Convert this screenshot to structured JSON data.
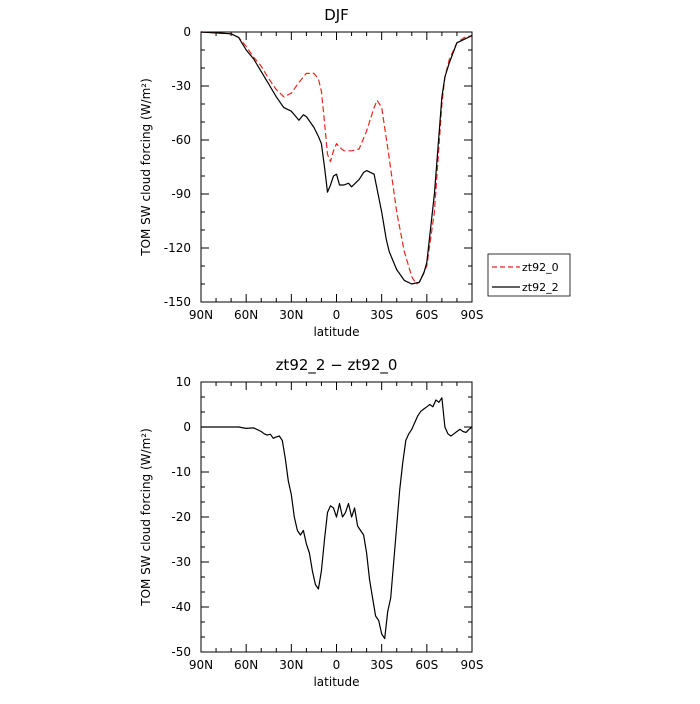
{
  "chart_data": [
    {
      "type": "line",
      "title": "DJF",
      "xlabel": "latitude",
      "ylabel": "TOM SW cloud forcing (W/m²)",
      "x_tick_labels": [
        "90N",
        "60N",
        "30N",
        "0",
        "30S",
        "60S",
        "90S"
      ],
      "x_ticks": [
        -90,
        -60,
        -30,
        0,
        30,
        60,
        90
      ],
      "xlim": [
        -90,
        90
      ],
      "y_ticks": [
        0,
        -30,
        -60,
        -90,
        -120,
        -150
      ],
      "ylim": [
        -150,
        0
      ],
      "legend_position": "right",
      "series": [
        {
          "name": "zt92_0",
          "color": "#e8281c",
          "dash": "dashed",
          "x": [
            -90,
            -80,
            -70,
            -65,
            -60,
            -55,
            -50,
            -45,
            -40,
            -35,
            -30,
            -25,
            -20,
            -15,
            -12,
            -10,
            -8,
            -6,
            -4,
            -2,
            0,
            2,
            5,
            10,
            15,
            20,
            25,
            27,
            30,
            35,
            40,
            45,
            50,
            53,
            55,
            60,
            65,
            70,
            72,
            75,
            80,
            85,
            90
          ],
          "y": [
            0,
            -0.5,
            -1,
            -3,
            -8,
            -14,
            -19,
            -26,
            -32,
            -36,
            -34,
            -28,
            -23,
            -23,
            -26,
            -33,
            -50,
            -68,
            -72,
            -66,
            -62,
            -64,
            -66,
            -66,
            -65,
            -55,
            -42,
            -38,
            -42,
            -70,
            -100,
            -122,
            -136,
            -140,
            -139,
            -130,
            -100,
            -40,
            -25,
            -15,
            -6,
            -3,
            -2
          ]
        },
        {
          "name": "zt92_2",
          "color": "#000000",
          "dash": "solid",
          "x": [
            -90,
            -80,
            -70,
            -65,
            -60,
            -55,
            -50,
            -45,
            -40,
            -35,
            -30,
            -27,
            -25,
            -22,
            -20,
            -15,
            -12,
            -10,
            -8,
            -6,
            -4,
            -2,
            0,
            2,
            5,
            8,
            10,
            15,
            18,
            20,
            25,
            30,
            33,
            35,
            40,
            45,
            50,
            55,
            58,
            60,
            65,
            70,
            72,
            75,
            80,
            85,
            90
          ],
          "y": [
            0,
            -0.5,
            -1,
            -3,
            -10,
            -15,
            -22,
            -29,
            -36,
            -42,
            -44,
            -47,
            -49,
            -46,
            -47,
            -53,
            -58,
            -62,
            -75,
            -89,
            -85,
            -80,
            -79,
            -85,
            -85,
            -84,
            -86,
            -82,
            -78,
            -77,
            -79,
            -100,
            -115,
            -122,
            -132,
            -138,
            -140,
            -139,
            -134,
            -128,
            -90,
            -36,
            -25,
            -17,
            -6,
            -4,
            -2
          ]
        }
      ]
    },
    {
      "type": "line",
      "title": "zt92_2 − zt92_0",
      "xlabel": "latitude",
      "ylabel": "TOM SW cloud forcing (W/m²)",
      "x_tick_labels": [
        "90N",
        "60N",
        "30N",
        "0",
        "30S",
        "60S",
        "90S"
      ],
      "x_ticks": [
        -90,
        -60,
        -30,
        0,
        30,
        60,
        90
      ],
      "xlim": [
        -90,
        90
      ],
      "y_ticks": [
        10,
        0,
        -10,
        -20,
        -30,
        -40,
        -50
      ],
      "ylim": [
        -50,
        10
      ],
      "series": [
        {
          "color": "#000000",
          "dash": "solid",
          "x": [
            -90,
            -80,
            -70,
            -65,
            -60,
            -55,
            -50,
            -48,
            -46,
            -44,
            -42,
            -40,
            -38,
            -36,
            -34,
            -32,
            -30,
            -28,
            -26,
            -24,
            -22,
            -20,
            -18,
            -16,
            -14,
            -12,
            -10,
            -8,
            -6,
            -4,
            -2,
            0,
            2,
            4,
            6,
            8,
            10,
            12,
            14,
            16,
            18,
            20,
            22,
            24,
            26,
            28,
            30,
            32,
            34,
            36,
            38,
            40,
            42,
            44,
            46,
            48,
            50,
            52,
            54,
            56,
            58,
            60,
            62,
            64,
            66,
            68,
            70,
            72,
            74,
            76,
            78,
            80,
            82,
            84,
            86,
            88,
            90
          ],
          "y": [
            0,
            0,
            0,
            0,
            -0.3,
            -0.2,
            -1,
            -1.5,
            -1.8,
            -1.6,
            -2.5,
            -2.2,
            -2,
            -3,
            -7,
            -12,
            -15,
            -20,
            -23,
            -24,
            -23,
            -26,
            -28,
            -32,
            -35,
            -36,
            -32,
            -25,
            -19,
            -17.5,
            -18,
            -20,
            -17,
            -20,
            -19,
            -17,
            -20,
            -18,
            -22,
            -23,
            -24,
            -28,
            -34,
            -38,
            -42,
            -43,
            -46,
            -47,
            -41,
            -38,
            -30,
            -22,
            -14,
            -8,
            -3,
            -1.5,
            -0.5,
            1,
            2.5,
            3.5,
            4,
            4.5,
            5,
            4.5,
            6,
            5.5,
            6.5,
            0,
            -1.5,
            -2,
            -1.5,
            -1,
            -0.5,
            -1,
            -1.2,
            -0.5,
            0
          ]
        }
      ]
    }
  ]
}
